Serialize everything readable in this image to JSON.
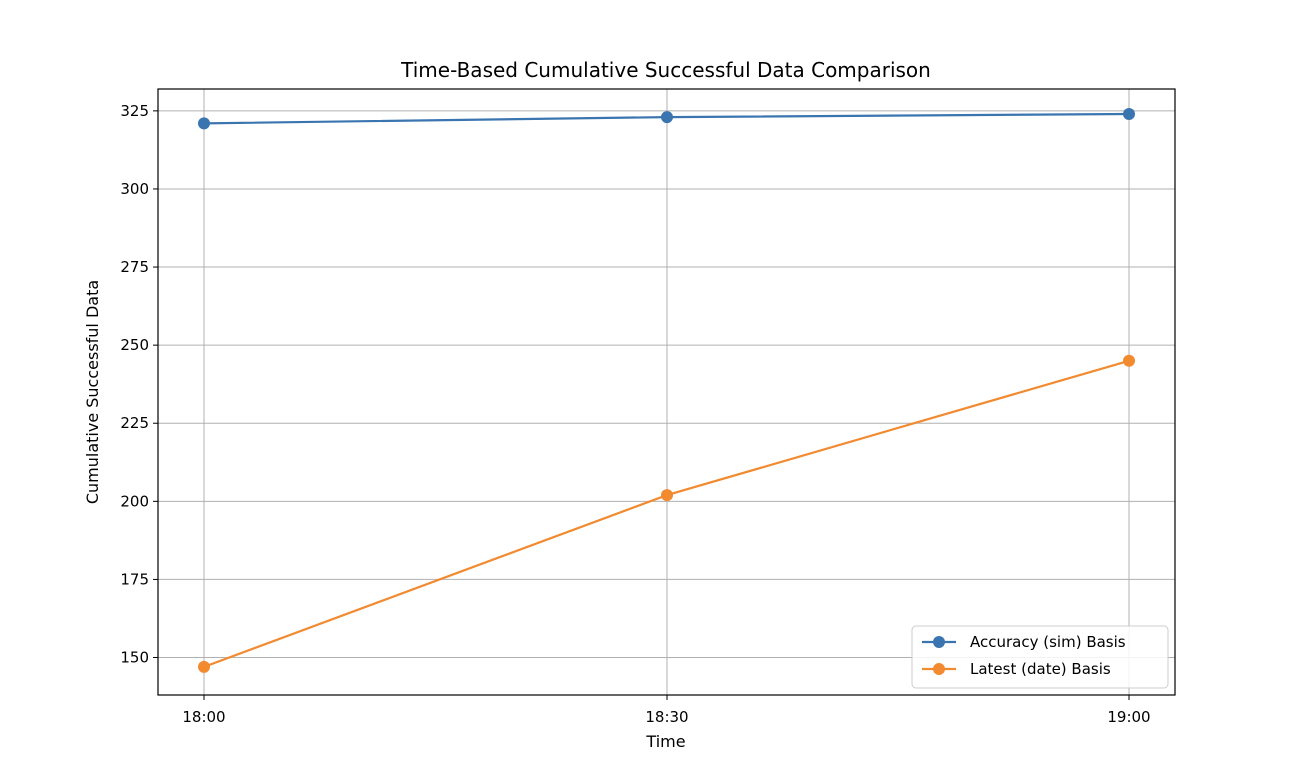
{
  "chart_data": {
    "type": "line",
    "title": "Time-Based Cumulative Successful Data Comparison",
    "xlabel": "Time",
    "ylabel": "Cumulative Successful Data",
    "categories": [
      "18:00",
      "18:30",
      "19:00"
    ],
    "ylim": [
      138,
      332
    ],
    "yticks": [
      150,
      175,
      200,
      225,
      250,
      275,
      300,
      325
    ],
    "grid": true,
    "legend_position": "lower-right",
    "series": [
      {
        "name": "Accuracy (sim) Basis",
        "values": [
          321,
          323,
          324
        ],
        "color": "#3a75b0",
        "marker": "circle"
      },
      {
        "name": "Latest (date) Basis",
        "values": [
          147,
          202,
          245
        ],
        "color": "#f28a30",
        "marker": "circle"
      }
    ]
  }
}
